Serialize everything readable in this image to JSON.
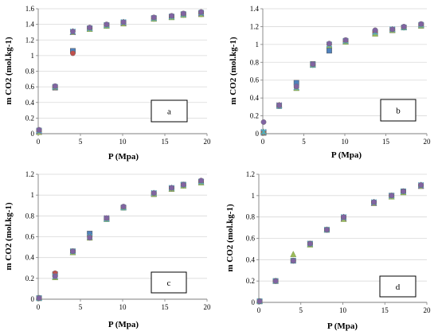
{
  "chart_data": [
    {
      "type": "scatter",
      "panel_label": "a",
      "xlabel": "P (Mpa)",
      "ylabel": "m CO2 (mol.kg-1)",
      "xlim": [
        0,
        20
      ],
      "ylim": [
        0,
        1.6
      ],
      "xticks": [
        0,
        5,
        10,
        15,
        20
      ],
      "yticks": [
        0,
        0.2,
        0.4,
        0.6,
        0.8,
        1.0,
        1.2,
        1.4,
        1.6
      ],
      "ytick_labels": [
        "0",
        "0.2",
        "0.4",
        "0.6",
        "0.8",
        "1",
        "1.2",
        "1.4",
        "1.6"
      ],
      "x": [
        0.1,
        2.0,
        4.1,
        6.1,
        8.1,
        10.1,
        13.7,
        15.8,
        17.2,
        19.3
      ],
      "series": [
        {
          "marker": "square",
          "color": "#4f81bd",
          "values": [
            0.04,
            0.59,
            1.06,
            1.35,
            1.39,
            1.42,
            1.48,
            1.5,
            1.53,
            1.54
          ]
        },
        {
          "marker": "circle",
          "color": "#c0504d",
          "values": [
            0.03,
            0.59,
            1.03,
            1.35,
            1.38,
            1.42,
            1.47,
            1.5,
            1.52,
            1.53
          ]
        },
        {
          "marker": "triangle",
          "color": "#9bbb59",
          "values": [
            0.02,
            0.6,
            1.3,
            1.34,
            1.38,
            1.41,
            1.47,
            1.49,
            1.52,
            1.53
          ]
        },
        {
          "marker": "x",
          "color": "#8064a2",
          "values": [
            0.03,
            0.6,
            1.3,
            1.35,
            1.39,
            1.42,
            1.48,
            1.5,
            1.53,
            1.54
          ]
        },
        {
          "marker": "star",
          "color": "#4bacc6",
          "values": [
            0.04,
            0.6,
            1.31,
            1.35,
            1.39,
            1.43,
            1.48,
            1.5,
            1.53,
            1.55
          ]
        },
        {
          "marker": "circle",
          "color": "#8064a2",
          "values": [
            0.05,
            0.61,
            1.31,
            1.36,
            1.4,
            1.43,
            1.49,
            1.51,
            1.54,
            1.56
          ]
        }
      ]
    },
    {
      "type": "scatter",
      "panel_label": "b",
      "xlabel": "P (Mpa)",
      "ylabel": "m CO2 (mol.kg-1)",
      "xlim": [
        0,
        20
      ],
      "ylim": [
        0,
        1.4
      ],
      "xticks": [
        0,
        5,
        10,
        15,
        20
      ],
      "yticks": [
        0,
        0.2,
        0.4,
        0.6,
        0.8,
        1.0,
        1.2,
        1.4
      ],
      "ytick_labels": [
        "0",
        "0.2",
        "0.4",
        "0.6",
        "0.8",
        "1",
        "1.2",
        "1.4"
      ],
      "x": [
        0.1,
        2.0,
        4.1,
        6.1,
        8.1,
        10.1,
        13.7,
        15.8,
        17.2,
        19.3
      ],
      "series": [
        {
          "marker": "square",
          "color": "#4f81bd",
          "values": [
            0.01,
            0.31,
            0.57,
            0.78,
            0.93,
            1.04,
            1.13,
            1.16,
            1.19,
            1.21
          ]
        },
        {
          "marker": "circle",
          "color": "#c0504d",
          "values": [
            0.01,
            0.31,
            0.52,
            0.77,
            1.0,
            1.03,
            1.14,
            1.16,
            1.19,
            1.22
          ]
        },
        {
          "marker": "triangle",
          "color": "#9bbb59",
          "values": [
            0.02,
            0.32,
            0.51,
            0.77,
            0.99,
            1.03,
            1.12,
            1.16,
            1.19,
            1.21
          ]
        },
        {
          "marker": "x",
          "color": "#8064a2",
          "values": [
            0.02,
            0.32,
            0.52,
            0.77,
            1.0,
            1.04,
            1.14,
            1.17,
            1.19,
            1.22
          ]
        },
        {
          "marker": "star",
          "color": "#4bacc6",
          "values": [
            0.02,
            0.31,
            0.52,
            0.77,
            1.0,
            1.04,
            1.14,
            1.17,
            1.19,
            1.22
          ]
        },
        {
          "marker": "circle",
          "color": "#8064a2",
          "values": [
            0.13,
            0.32,
            0.53,
            0.78,
            1.01,
            1.05,
            1.16,
            1.17,
            1.2,
            1.23
          ]
        }
      ]
    },
    {
      "type": "scatter",
      "panel_label": "c",
      "xlabel": "P (Mpa)",
      "ylabel": "m CO2 (mol.kg-1)",
      "xlim": [
        0,
        20
      ],
      "ylim": [
        0,
        1.2
      ],
      "xticks": [
        0,
        5,
        10,
        15,
        20
      ],
      "yticks": [
        0,
        0.2,
        0.4,
        0.6,
        0.8,
        1.0,
        1.2
      ],
      "ytick_labels": [
        "0",
        "0.2",
        "0.4",
        "0.6",
        "0.8",
        "1",
        "1.2"
      ],
      "x": [
        0.1,
        2.0,
        4.1,
        6.1,
        8.1,
        10.1,
        13.7,
        15.8,
        17.2,
        19.3
      ],
      "series": [
        {
          "marker": "square",
          "color": "#4f81bd",
          "values": [
            0.01,
            0.24,
            0.46,
            0.63,
            0.77,
            0.88,
            1.01,
            1.06,
            1.1,
            1.13
          ]
        },
        {
          "marker": "circle",
          "color": "#c0504d",
          "values": [
            0.01,
            0.25,
            0.46,
            0.6,
            0.77,
            0.88,
            1.01,
            1.06,
            1.09,
            1.13
          ]
        },
        {
          "marker": "triangle",
          "color": "#9bbb59",
          "values": [
            0.01,
            0.21,
            0.45,
            0.59,
            0.77,
            0.88,
            1.01,
            1.06,
            1.09,
            1.12
          ]
        },
        {
          "marker": "x",
          "color": "#8064a2",
          "values": [
            0.01,
            0.22,
            0.46,
            0.6,
            0.78,
            0.88,
            1.02,
            1.07,
            1.1,
            1.13
          ]
        },
        {
          "marker": "star",
          "color": "#4bacc6",
          "values": [
            0.01,
            0.22,
            0.46,
            0.6,
            0.77,
            0.88,
            1.02,
            1.07,
            1.1,
            1.13
          ]
        },
        {
          "marker": "circle",
          "color": "#8064a2",
          "values": [
            0.01,
            0.22,
            0.46,
            0.59,
            0.78,
            0.89,
            1.02,
            1.07,
            1.1,
            1.14
          ]
        }
      ]
    },
    {
      "type": "scatter",
      "panel_label": "d",
      "xlabel": "P (Mpa)",
      "ylabel": "m CO2 (mol.kg-1)",
      "xlim": [
        0,
        20
      ],
      "ylim": [
        0,
        1.2
      ],
      "xticks": [
        0,
        5,
        10,
        15,
        20
      ],
      "yticks": [
        0,
        0.2,
        0.4,
        0.6,
        0.8,
        1.0,
        1.2
      ],
      "ytick_labels": [
        "0",
        "0.2",
        "0.4",
        "0.6",
        "0.8",
        "1",
        "1.2"
      ],
      "x": [
        0.1,
        2.0,
        4.1,
        6.1,
        8.1,
        10.1,
        13.7,
        15.8,
        17.2,
        19.3
      ],
      "series": [
        {
          "marker": "square",
          "color": "#4f81bd",
          "values": [
            0.01,
            0.2,
            0.39,
            0.55,
            0.68,
            0.79,
            0.93,
            1.0,
            1.04,
            1.09
          ]
        },
        {
          "marker": "circle",
          "color": "#c0504d",
          "values": [
            0.01,
            0.2,
            0.39,
            0.55,
            0.68,
            0.79,
            0.93,
            1.0,
            1.04,
            1.09
          ]
        },
        {
          "marker": "triangle",
          "color": "#9bbb59",
          "values": [
            0.01,
            0.2,
            0.45,
            0.54,
            0.68,
            0.78,
            0.93,
            0.99,
            1.03,
            1.09
          ]
        },
        {
          "marker": "x",
          "color": "#8064a2",
          "values": [
            0.01,
            0.2,
            0.39,
            0.55,
            0.68,
            0.79,
            0.93,
            1.0,
            1.04,
            1.09
          ]
        },
        {
          "marker": "star",
          "color": "#4bacc6",
          "values": [
            0.01,
            0.2,
            0.39,
            0.55,
            0.68,
            0.8,
            0.94,
            1.0,
            1.04,
            1.1
          ]
        },
        {
          "marker": "circle",
          "color": "#8064a2",
          "values": [
            0.01,
            0.2,
            0.39,
            0.55,
            0.68,
            0.8,
            0.94,
            1.0,
            1.04,
            1.1
          ]
        }
      ]
    }
  ]
}
